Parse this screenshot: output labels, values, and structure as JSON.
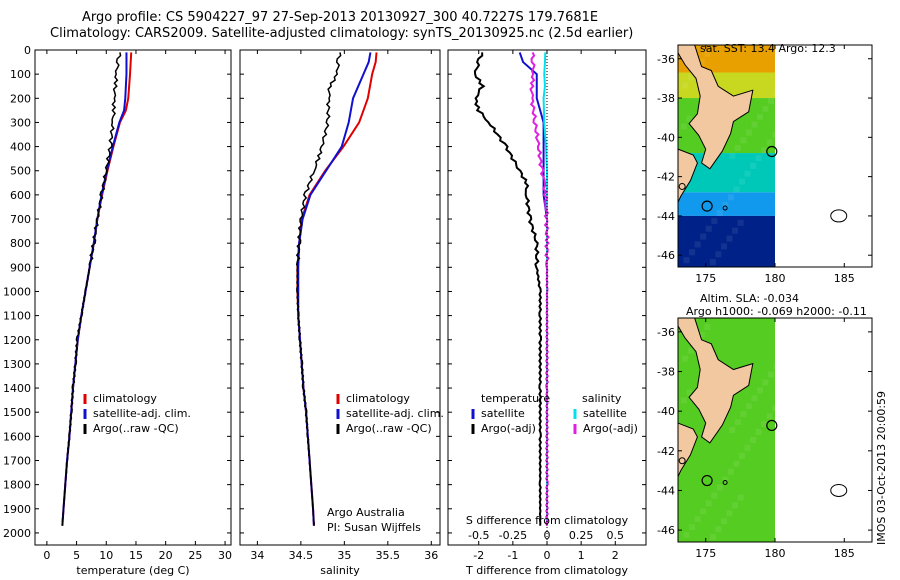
{
  "title_line1": "Argo profile: CS 5904227_97 27-Sep-2013 20130927_300 40.7227S 179.7681E",
  "title_line2": "Climatology: CARS2009. Satellite-adjusted climatology: synTS_20130925.nc (2.5d earlier)",
  "colors": {
    "climatology": "#e00000",
    "satellite": "#1010d0",
    "argo": "#000000",
    "salinity_sat": "#00e0f0",
    "salinity_argo": "#e020e0",
    "land": "#f2c8a0",
    "ocean_green": "#55cc22",
    "deep_blue": "#002288",
    "mid_blue": "#1199ee"
  },
  "annotation": {
    "org": "Argo Australia",
    "pi": "PI: Susan Wijffels"
  },
  "map_top_header": "sat. SST: 13.4  Argo: 12.3",
  "map_bottom_header_1": "Altim. SLA: -0.034",
  "map_bottom_header_2": "Argo h1000: -0.069 h2000: -0.11",
  "imos_stamp": "IMOS 03-Oct-2013 20:00:59",
  "chart_data": [
    {
      "type": "line",
      "xlabel": "temperature (deg C)",
      "ylabel": "",
      "xlim": [
        -2,
        31
      ],
      "ylim": [
        2050,
        0
      ],
      "xticks": [
        0,
        5,
        10,
        15,
        20,
        25,
        30
      ],
      "yticks": [
        0,
        100,
        200,
        300,
        400,
        500,
        600,
        700,
        800,
        900,
        1000,
        1100,
        1200,
        1300,
        1400,
        1500,
        1600,
        1700,
        1800,
        1900,
        2000
      ],
      "legend": [
        "climatology",
        "satellite-adj. clim.",
        "Argo(..raw -QC)"
      ],
      "legend_placement": "lower-right",
      "series": [
        {
          "name": "climatology",
          "color": "#e00000",
          "depth": [
            10,
            100,
            200,
            250,
            300,
            400,
            500,
            600,
            700,
            800,
            900,
            1000,
            1100,
            1200,
            1300,
            1400,
            1500,
            1600,
            1700,
            1800,
            1900,
            1970
          ],
          "values": [
            14.2,
            14.0,
            13.7,
            13.3,
            12.3,
            11.2,
            10.2,
            9.3,
            8.5,
            7.9,
            7.2,
            6.5,
            5.8,
            5.2,
            4.8,
            4.4,
            4.1,
            3.8,
            3.4,
            3.1,
            2.8,
            2.6
          ]
        },
        {
          "name": "satellite-adj. clim.",
          "color": "#1010d0",
          "depth": [
            10,
            100,
            200,
            250,
            300,
            400,
            500,
            600,
            700,
            800,
            900,
            1000,
            1100,
            1200,
            1300,
            1400,
            1500,
            1600,
            1700,
            1800,
            1900,
            1970
          ],
          "values": [
            13.4,
            13.4,
            13.2,
            13.0,
            12.2,
            11.1,
            10.1,
            9.2,
            8.5,
            7.9,
            7.2,
            6.5,
            5.8,
            5.2,
            4.8,
            4.4,
            4.1,
            3.8,
            3.4,
            3.1,
            2.8,
            2.6
          ]
        },
        {
          "name": "Argo(..raw -QC)",
          "color": "#000000",
          "depth": [
            10,
            50,
            100,
            150,
            200,
            250,
            300,
            400,
            500,
            600,
            700,
            800,
            900,
            1000,
            1100,
            1200,
            1300,
            1400,
            1500,
            1600,
            1700,
            1800,
            1900,
            1970
          ],
          "values": [
            12.3,
            12.0,
            11.7,
            11.5,
            11.3,
            11.3,
            11.1,
            10.7,
            10.0,
            9.2,
            8.5,
            7.9,
            7.2,
            6.5,
            5.8,
            5.1,
            4.8,
            4.4,
            4.1,
            3.8,
            3.4,
            3.1,
            2.8,
            2.6
          ]
        }
      ]
    },
    {
      "type": "line",
      "xlabel": "salinity",
      "xlim": [
        33.8,
        36.1
      ],
      "ylim": [
        2050,
        0
      ],
      "xticks": [
        34,
        34.5,
        35,
        35.5,
        36
      ],
      "legend": [
        "climatology",
        "satellite-adj. clim.",
        "Argo(..raw -QC)"
      ],
      "legend_placement": "lower-right",
      "series": [
        {
          "name": "climatology",
          "color": "#e00000",
          "depth": [
            10,
            50,
            100,
            200,
            300,
            400,
            500,
            600,
            700,
            800,
            900,
            1000,
            1100,
            1200,
            1300,
            1400,
            1500,
            1600,
            1700,
            1800,
            1900,
            1970
          ],
          "values": [
            35.37,
            35.36,
            35.32,
            35.27,
            35.17,
            34.99,
            34.78,
            34.6,
            34.51,
            34.48,
            34.46,
            34.46,
            34.47,
            34.49,
            34.51,
            34.53,
            34.56,
            34.58,
            34.6,
            34.62,
            34.64,
            34.65
          ]
        },
        {
          "name": "satellite-adj. clim.",
          "color": "#1010d0",
          "depth": [
            10,
            50,
            100,
            200,
            300,
            400,
            500,
            600,
            700,
            800,
            900,
            1000,
            1100,
            1200,
            1300,
            1400,
            1500,
            1600,
            1700,
            1800,
            1900,
            1970
          ],
          "values": [
            35.3,
            35.28,
            35.22,
            35.1,
            35.05,
            34.97,
            34.79,
            34.61,
            34.52,
            34.48,
            34.47,
            34.47,
            34.47,
            34.49,
            34.51,
            34.53,
            34.56,
            34.58,
            34.6,
            34.62,
            34.64,
            34.65
          ]
        },
        {
          "name": "Argo(..raw -QC)",
          "color": "#000000",
          "depth": [
            10,
            50,
            100,
            150,
            200,
            300,
            400,
            450,
            500,
            600,
            700,
            800,
            900,
            1000,
            1100,
            1200,
            1300,
            1400,
            1500,
            1600,
            1700,
            1800,
            1900,
            1970
          ],
          "values": [
            34.95,
            34.93,
            34.92,
            34.83,
            34.82,
            34.81,
            34.74,
            34.7,
            34.65,
            34.55,
            34.5,
            34.48,
            34.46,
            34.46,
            34.47,
            34.49,
            34.51,
            34.53,
            34.56,
            34.58,
            34.6,
            34.62,
            34.64,
            34.65
          ]
        }
      ]
    },
    {
      "type": "line",
      "xlabel_top": "S difference from climatology",
      "xlabel": "T difference from climatology",
      "xlim": [
        -2.9,
        2.9
      ],
      "ylim": [
        2050,
        0
      ],
      "xticks_T": [
        -2,
        -1,
        0,
        1,
        2
      ],
      "xticks_S": [
        -0.5,
        -0.25,
        0,
        0.25,
        0.5
      ],
      "xtick_labels_S": [
        "-0.5",
        "-0.25",
        "0",
        "0.25",
        "0.5"
      ],
      "legend": [
        "temperature",
        "satellite",
        "Argo(-adj)",
        "salinity",
        "satellite",
        "Argo(-adj)"
      ],
      "legend_placement": "lower-center",
      "series": [
        {
          "name": "temperature satellite",
          "color": "#1010d0",
          "depth": [
            10,
            50,
            100,
            200,
            300,
            400,
            500,
            600,
            700,
            800,
            900,
            1000,
            1200,
            1400,
            1600,
            1800,
            1970
          ],
          "values": [
            -0.8,
            -0.7,
            -0.3,
            -0.3,
            -0.1,
            -0.1,
            -0.1,
            -0.1,
            0,
            0,
            0,
            0,
            0,
            0,
            0,
            0,
            0
          ]
        },
        {
          "name": "temperature Argo(-adj)",
          "color": "#000000",
          "depth": [
            10,
            50,
            100,
            150,
            200,
            250,
            300,
            400,
            500,
            550,
            600,
            700,
            800,
            900,
            1000,
            1100,
            1200,
            1400,
            1600,
            1800,
            1970
          ],
          "values": [
            -1.9,
            -2.0,
            -2.1,
            -1.9,
            -2.1,
            -2.0,
            -1.7,
            -1.2,
            -0.8,
            -0.6,
            -0.6,
            -0.5,
            -0.3,
            -0.3,
            -0.2,
            -0.2,
            -0.2,
            -0.2,
            -0.2,
            -0.2,
            -0.2
          ]
        },
        {
          "name": "salinity satellite",
          "color": "#00e0f0",
          "depth": [
            10,
            50,
            100,
            150,
            200,
            300,
            400,
            500,
            600,
            700,
            800,
            1000,
            1400,
            1800,
            1970
          ],
          "values": [
            -0.05,
            -0.06,
            -0.08,
            -0.06,
            -0.1,
            -0.08,
            -0.03,
            0,
            0,
            0,
            0,
            0,
            0,
            0,
            0
          ]
        },
        {
          "name": "salinity Argo(-adj)",
          "color": "#e020e0",
          "depth": [
            10,
            50,
            100,
            150,
            200,
            300,
            400,
            500,
            550,
            600,
            650,
            800,
            1000,
            1400,
            1800,
            1970
          ],
          "values": [
            -0.42,
            -0.4,
            -0.4,
            -0.45,
            -0.44,
            -0.35,
            -0.25,
            -0.15,
            -0.08,
            -0.05,
            -0.02,
            0,
            0,
            0,
            0,
            0
          ]
        }
      ]
    },
    {
      "type": "heatmap",
      "title": "sat. SST: 13.4  Argo: 12.3",
      "xlim": [
        173,
        187
      ],
      "ylim": [
        -46.6,
        -35.3
      ],
      "xticks": [
        175,
        180,
        185
      ],
      "yticks": [
        -36,
        -38,
        -40,
        -42,
        -44,
        -46
      ],
      "bands": [
        {
          "lat_from": -35.3,
          "lat_to": -36.7,
          "color": "#e8a000"
        },
        {
          "lat_from": -36.7,
          "lat_to": -38.0,
          "color": "#c8d820"
        },
        {
          "lat_from": -38.0,
          "lat_to": -40.8,
          "color": "#55cc22"
        },
        {
          "lat_from": -40.8,
          "lat_to": -42.8,
          "color": "#00c8b8"
        },
        {
          "lat_from": -42.8,
          "lat_to": -44.0,
          "color": "#1199ee"
        },
        {
          "lat_from": -44.0,
          "lat_to": -46.6,
          "color": "#002288"
        }
      ],
      "argo_position": {
        "lon": 179.77,
        "lat": -40.72
      }
    },
    {
      "type": "heatmap",
      "title": "Altim. SLA: -0.034",
      "xlim": [
        173,
        187
      ],
      "ylim": [
        -46.6,
        -35.3
      ],
      "xticks": [
        175,
        180,
        185
      ],
      "yticks": [
        -36,
        -38,
        -40,
        -42,
        -44,
        -46
      ],
      "bands": [
        {
          "lat_from": -35.3,
          "lat_to": -46.6,
          "color": "#55cc22"
        }
      ],
      "argo_position": {
        "lon": 179.77,
        "lat": -40.72
      }
    }
  ]
}
